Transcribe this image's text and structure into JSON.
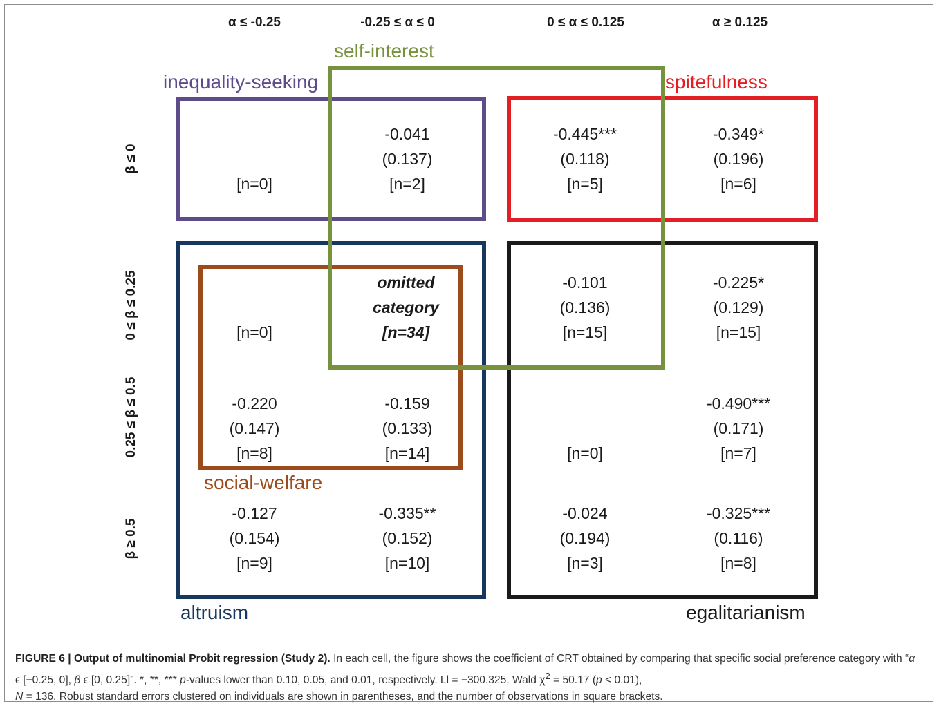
{
  "columns": [
    "α ≤ -0.25",
    "-0.25 ≤ α ≤ 0",
    "0 ≤ α ≤ 0.125",
    "α ≥ 0.125"
  ],
  "rows": [
    "β ≤ 0",
    "0 ≤ β ≤ 0.25",
    "0.25 ≤ β ≤ 0.5",
    "β ≥ 0.5"
  ],
  "categories": {
    "inequality_seeking": {
      "label": "inequality-seeking",
      "color": "#5e4b8b"
    },
    "self_interest": {
      "label": "self-interest",
      "color": "#76923c"
    },
    "spitefulness": {
      "label": "spitefulness",
      "color": "#e31e24"
    },
    "social_welfare": {
      "label": "social-welfare",
      "color": "#9c4c1c"
    },
    "altruism": {
      "label": "altruism",
      "color": "#17375e"
    },
    "egalitarianism": {
      "label": "egalitarianism",
      "color": "#1a1a1a"
    }
  },
  "cells": {
    "r1c1": {
      "coef": "",
      "se": "",
      "n": "[n=0]"
    },
    "r1c2": {
      "coef": "-0.041",
      "se": "(0.137)",
      "n": "[n=2]"
    },
    "r1c3": {
      "coef": "-0.445***",
      "se": "(0.118)",
      "n": "[n=5]"
    },
    "r1c4": {
      "coef": "-0.349*",
      "se": "(0.196)",
      "n": "[n=6]"
    },
    "r2c1": {
      "coef": "",
      "se": "",
      "n": "[n=0]"
    },
    "r2c2": {
      "coef": "omitted",
      "se": "category",
      "n": "[n=34]"
    },
    "r2c3": {
      "coef": "-0.101",
      "se": "(0.136)",
      "n": "[n=15]"
    },
    "r2c4": {
      "coef": "-0.225*",
      "se": "(0.129)",
      "n": "[n=15]"
    },
    "r3c1": {
      "coef": "-0.220",
      "se": "(0.147)",
      "n": "[n=8]"
    },
    "r3c2": {
      "coef": "-0.159",
      "se": "(0.133)",
      "n": "[n=14]"
    },
    "r3c3": {
      "coef": "",
      "se": "",
      "n": "[n=0]"
    },
    "r3c4": {
      "coef": "-0.490***",
      "se": "(0.171)",
      "n": "[n=7]"
    },
    "r4c1": {
      "coef": "-0.127",
      "se": "(0.154)",
      "n": "[n=9]"
    },
    "r4c2": {
      "coef": "-0.335**",
      "se": "(0.152)",
      "n": "[n=10]"
    },
    "r4c3": {
      "coef": "-0.024",
      "se": "(0.194)",
      "n": "[n=3]"
    },
    "r4c4": {
      "coef": "-0.325***",
      "se": "(0.116)",
      "n": "[n=8]"
    }
  },
  "caption": {
    "label": "FIGURE 6 | Output of multinomial Probit regression (Study 2).",
    "p1": " In each cell, the figure shows the coefficient of CRT obtained by comparing that specific social preference category with “",
    "cond_a": "α",
    "p2": " ϵ [−0.25,  0], ",
    "cond_b": "β",
    "p3": " ϵ [0,  0.25]”. *, **, *** ",
    "pv": "p",
    "p4": "-values lower than 0.10, 0.05, and 0.01, respectively. Ll = −300.325, Wald χ",
    "sup": "2",
    "p5": " = 50.17 (",
    "pv2": "p",
    "p6": " < 0.01),",
    "nvar": "N",
    "p7": " = 136. Robust standard errors clustered on individuals are shown in parentheses, and the number of observations in square brackets."
  }
}
